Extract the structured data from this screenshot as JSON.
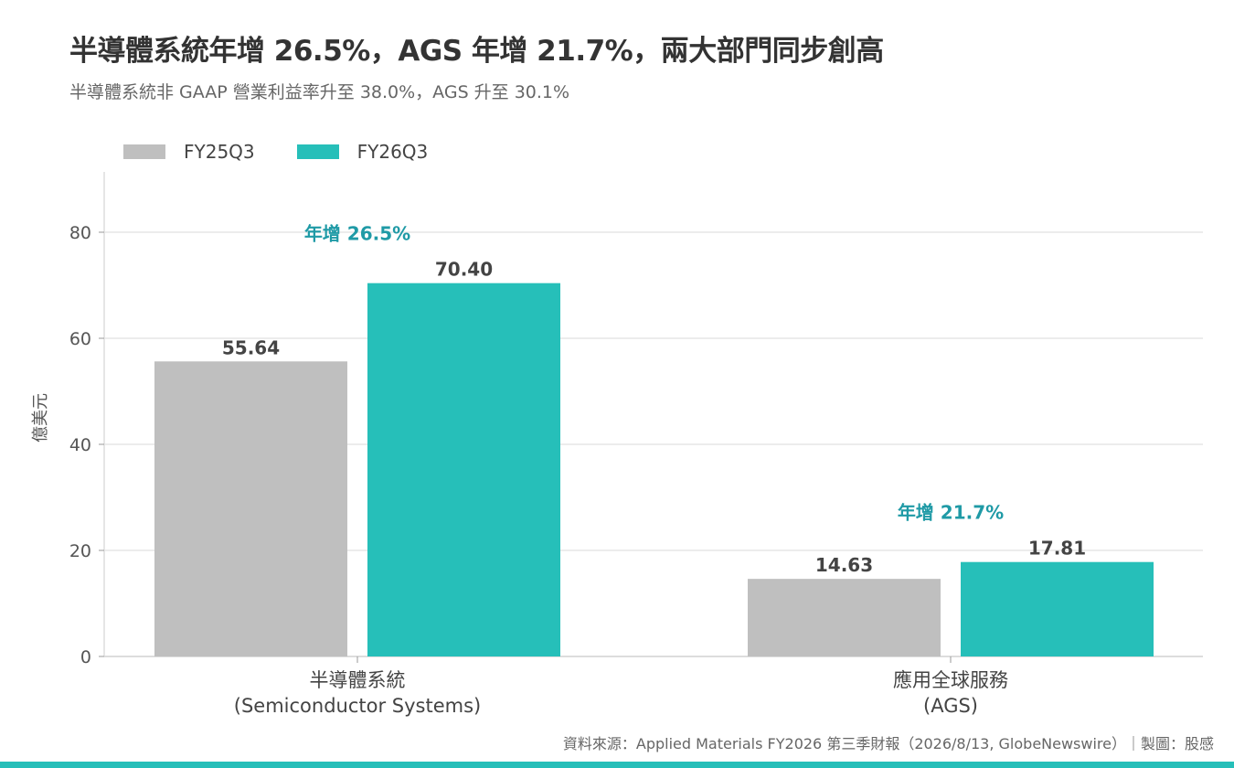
{
  "header": {
    "title": "半導體系統年增 26.5%，AGS 年增 21.7%，兩大部門同步創高",
    "subtitle": "半導體系統非 GAAP 營業利益率升至 38.0%，AGS 升至 30.1%"
  },
  "colors": {
    "fy25q3": "#bfbfbf",
    "fy26q3": "#26bfb9",
    "annotation": "#1f9aa6",
    "grid": "#e6e6e6",
    "axis": "#cccccc",
    "bottom_bar": "#26bfb9"
  },
  "footer": {
    "source": "資料來源：Applied Materials FY2026 第三季財報（2026/8/13, GlobeNewswire）｜製圖：股感"
  },
  "chart_data": {
    "type": "bar",
    "title": "半導體系統年增 26.5%，AGS 年增 21.7%，兩大部門同步創高",
    "subtitle": "半導體系統非 GAAP 營業利益率升至 38.0%，AGS 升至 30.1%",
    "ylabel": "億美元",
    "xlabel": "",
    "ylim": [
      0,
      90
    ],
    "yticks": [
      0,
      20,
      40,
      60,
      80
    ],
    "grid": true,
    "legend_position": "top-left",
    "categories": [
      [
        "半導體系統",
        "(Semiconductor Systems)"
      ],
      [
        "應用全球服務",
        "(AGS)"
      ]
    ],
    "series": [
      {
        "name": "FY25Q3",
        "values": [
          55.64,
          14.63
        ],
        "labels": [
          "55.64",
          "14.63"
        ]
      },
      {
        "name": "FY26Q3",
        "values": [
          70.4,
          17.81
        ],
        "labels": [
          "70.40",
          "17.81"
        ]
      }
    ],
    "annotations": [
      "年增 26.5%",
      "年增 21.7%"
    ]
  }
}
